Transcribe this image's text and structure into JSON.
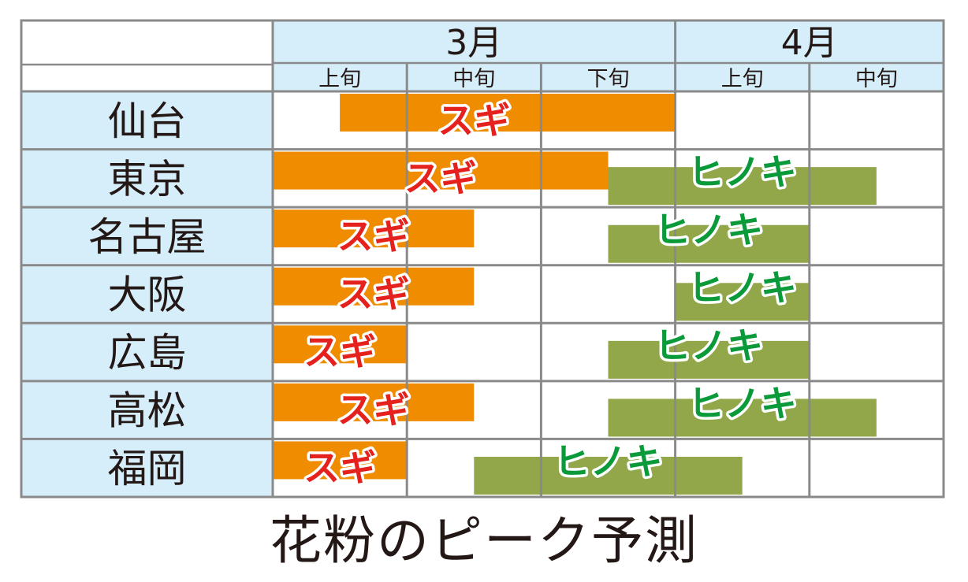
{
  "chart_data": {
    "type": "gantt",
    "title": "花粉のピーク予測",
    "months": [
      {
        "label": "3月",
        "periods": [
          "上旬",
          "中旬",
          "下旬"
        ]
      },
      {
        "label": "4月",
        "periods": [
          "上旬",
          "中旬"
        ]
      }
    ],
    "periods": [
      "上旬",
      "中旬",
      "下旬",
      "上旬",
      "中旬"
    ],
    "cities": [
      "仙台",
      "東京",
      "名古屋",
      "大阪",
      "広島",
      "高松",
      "福岡"
    ],
    "series": [
      {
        "name": "スギ",
        "color": "#f08c00",
        "label_color": "#e5211e",
        "ranges": [
          {
            "city": "仙台",
            "start": 0.5,
            "end": 3.0
          },
          {
            "city": "東京",
            "start": 0.0,
            "end": 2.5
          },
          {
            "city": "名古屋",
            "start": 0.0,
            "end": 1.5
          },
          {
            "city": "大阪",
            "start": 0.0,
            "end": 1.5
          },
          {
            "city": "広島",
            "start": 0.0,
            "end": 1.0
          },
          {
            "city": "高松",
            "start": 0.0,
            "end": 1.5
          },
          {
            "city": "福岡",
            "start": 0.0,
            "end": 1.0
          }
        ]
      },
      {
        "name": "ヒノキ",
        "color": "#92a74a",
        "label_color": "#0a9a3a",
        "ranges": [
          {
            "city": "東京",
            "start": 2.5,
            "end": 4.5
          },
          {
            "city": "名古屋",
            "start": 2.5,
            "end": 4.0
          },
          {
            "city": "大阪",
            "start": 3.0,
            "end": 4.0
          },
          {
            "city": "広島",
            "start": 2.5,
            "end": 4.0
          },
          {
            "city": "高松",
            "start": 2.5,
            "end": 4.5
          },
          {
            "city": "福岡",
            "start": 1.5,
            "end": 3.5
          }
        ]
      }
    ],
    "colors": {
      "header_fill": "#d6eefa",
      "grid": "#8a8a8a",
      "text": "#231815"
    }
  }
}
